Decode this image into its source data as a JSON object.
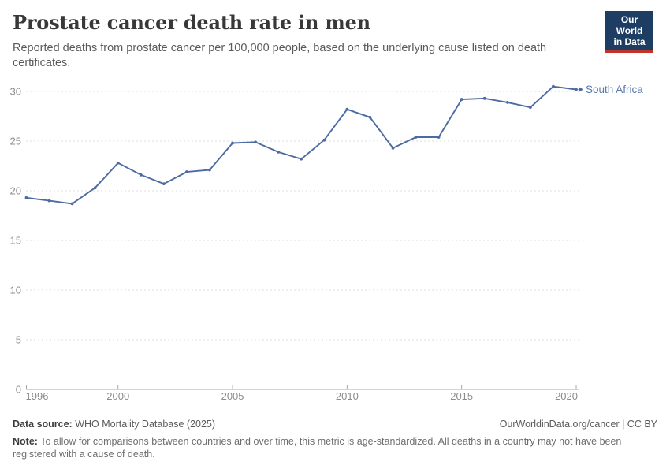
{
  "header": {
    "title": "Prostate cancer death rate in men",
    "subtitle": "Reported deaths from prostate cancer per 100,000 people, based on the underlying cause listed on death certificates.",
    "logo": {
      "line1": "Our World",
      "line2": "in Data",
      "bg_color": "#1d3d63",
      "bar_color": "#c0342c"
    }
  },
  "chart_data": {
    "type": "line",
    "title": "Prostate cancer death rate in men",
    "xlabel": "",
    "ylabel": "",
    "x": [
      1996,
      1997,
      1998,
      1999,
      2000,
      2001,
      2002,
      2003,
      2004,
      2005,
      2006,
      2007,
      2008,
      2009,
      2010,
      2011,
      2012,
      2013,
      2014,
      2015,
      2016,
      2017,
      2018,
      2019,
      2020
    ],
    "series": [
      {
        "name": "South Africa",
        "color": "#4c6ba3",
        "label_color": "#5878ab",
        "values": [
          19.3,
          19.0,
          18.7,
          20.3,
          22.8,
          21.6,
          20.7,
          21.9,
          22.1,
          24.8,
          24.9,
          23.9,
          23.2,
          25.1,
          28.2,
          27.4,
          24.3,
          25.4,
          25.4,
          29.2,
          29.3,
          28.9,
          28.4,
          30.5,
          30.2
        ]
      }
    ],
    "xticks": [
      1996,
      2000,
      2005,
      2010,
      2015,
      2020
    ],
    "yticks": [
      0,
      5,
      10,
      15,
      20,
      25,
      30
    ],
    "xlim": [
      1996,
      2020
    ],
    "ylim": [
      0,
      30
    ],
    "grid": "horizontal-dashed",
    "legend_position": "end-of-line-label",
    "grid_color": "#dcdcdc",
    "axis_color": "#a8a8a8",
    "tick_label_color": "#8c8c8c"
  },
  "footer": {
    "datasource_label": "Data source:",
    "datasource": " WHO Mortality Database (2025)",
    "link": "OurWorldinData.org/cancer | CC BY",
    "note_label": "Note:",
    "note": " To allow for comparisons between countries and over time, this metric is age-standardized. All deaths in a country may not have been registered with a cause of death."
  }
}
